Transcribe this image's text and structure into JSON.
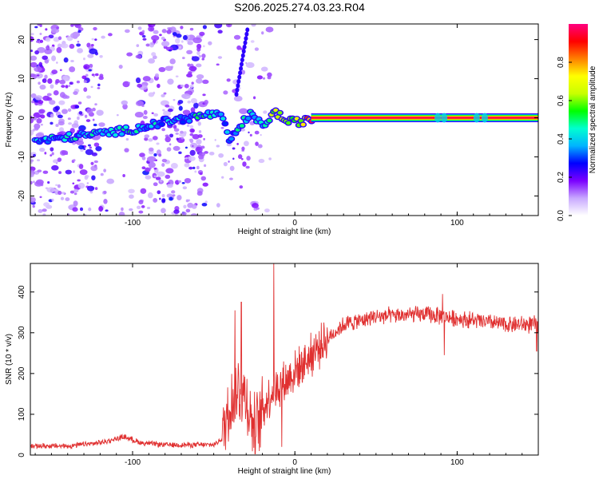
{
  "title": "S206.2025.274.03.23.R04",
  "chart_data": [
    {
      "type": "heatmap",
      "name": "spectrogram",
      "xlabel": "Height of straight line (km)",
      "ylabel": "Frequency (Hz)",
      "xlim": [
        -163,
        150
      ],
      "ylim": [
        -25,
        24
      ],
      "x_ticks": [
        -100,
        0,
        100
      ],
      "y_ticks": [
        -20,
        -10,
        0,
        10,
        20
      ],
      "colorbar": {
        "label": "Normalized spectral amplitude",
        "range": [
          0,
          1
        ],
        "ticks": [
          "0.0",
          "0.2",
          "0.4",
          "0.6",
          "0.8"
        ],
        "colors": [
          "#ffffff",
          "#c8a8ff",
          "#7b00ff",
          "#0000ff",
          "#00b4ff",
          "#00ffd0",
          "#00ff00",
          "#c8ff00",
          "#ffff00",
          "#ff8000",
          "#ff0000",
          "#ff0080"
        ]
      },
      "ridge": [
        {
          "x": -160,
          "y": -6.0,
          "a": 0.35
        },
        {
          "x": -150,
          "y": -5.5,
          "a": 0.4
        },
        {
          "x": -140,
          "y": -5.0,
          "a": 0.4
        },
        {
          "x": -130,
          "y": -4.5,
          "a": 0.4
        },
        {
          "x": -120,
          "y": -4.0,
          "a": 0.4
        },
        {
          "x": -110,
          "y": -3.5,
          "a": 0.4
        },
        {
          "x": -100,
          "y": -3.0,
          "a": 0.45
        },
        {
          "x": -90,
          "y": -2.0,
          "a": 0.4
        },
        {
          "x": -80,
          "y": -1.0,
          "a": 0.35
        },
        {
          "x": -50,
          "y": 1.0,
          "a": 0.45
        },
        {
          "x": -45,
          "y": 0.0,
          "a": 0.4
        },
        {
          "x": -40,
          "y": -6.0,
          "a": 0.35
        },
        {
          "x": -35,
          "y": -3.0,
          "a": 0.4
        },
        {
          "x": -28,
          "y": 1.0,
          "a": 0.45
        },
        {
          "x": -20,
          "y": -2.0,
          "a": 0.4
        },
        {
          "x": -12,
          "y": 1.5,
          "a": 0.65
        },
        {
          "x": -5,
          "y": -1.0,
          "a": 0.6
        },
        {
          "x": 5,
          "y": -1.0,
          "a": 0.65
        },
        {
          "x": 12,
          "y": 0.0,
          "a": 1.0
        },
        {
          "x": 150,
          "y": 0.0,
          "a": 1.0
        }
      ]
    },
    {
      "type": "line",
      "name": "snr",
      "xlabel": "Height of straight line (km)",
      "ylabel": "SNR (10 * v/v)",
      "xlim": [
        -163,
        150
      ],
      "ylim": [
        0,
        470
      ],
      "x_ticks": [
        -100,
        0,
        100
      ],
      "y_ticks": [
        0,
        100,
        200,
        300,
        400
      ],
      "series": [
        {
          "name": "SNR",
          "color": "#e03030",
          "baseline": [
            {
              "x": -163,
              "y": 22
            },
            {
              "x": -140,
              "y": 22
            },
            {
              "x": -120,
              "y": 30
            },
            {
              "x": -105,
              "y": 45
            },
            {
              "x": -95,
              "y": 30
            },
            {
              "x": -80,
              "y": 25
            },
            {
              "x": -50,
              "y": 25
            },
            {
              "x": -45,
              "y": 40
            },
            {
              "x": -40,
              "y": 130
            },
            {
              "x": -35,
              "y": 160
            },
            {
              "x": -30,
              "y": 140
            },
            {
              "x": -25,
              "y": 60
            },
            {
              "x": -20,
              "y": 110
            },
            {
              "x": -15,
              "y": 150
            },
            {
              "x": -10,
              "y": 170
            },
            {
              "x": -5,
              "y": 185
            },
            {
              "x": 0,
              "y": 205
            },
            {
              "x": 10,
              "y": 245
            },
            {
              "x": 20,
              "y": 285
            },
            {
              "x": 30,
              "y": 320
            },
            {
              "x": 50,
              "y": 340
            },
            {
              "x": 80,
              "y": 345
            },
            {
              "x": 110,
              "y": 330
            },
            {
              "x": 130,
              "y": 320
            },
            {
              "x": 150,
              "y": 320
            }
          ],
          "spikes": [
            {
              "x": -33,
              "y": 375
            },
            {
              "x": -37,
              "y": 355
            },
            {
              "x": -13,
              "y": 470
            },
            {
              "x": -8,
              "y": 20
            },
            {
              "x": 91,
              "y": 395
            },
            {
              "x": 92,
              "y": 245
            },
            {
              "x": 149,
              "y": 255
            }
          ]
        }
      ]
    }
  ]
}
